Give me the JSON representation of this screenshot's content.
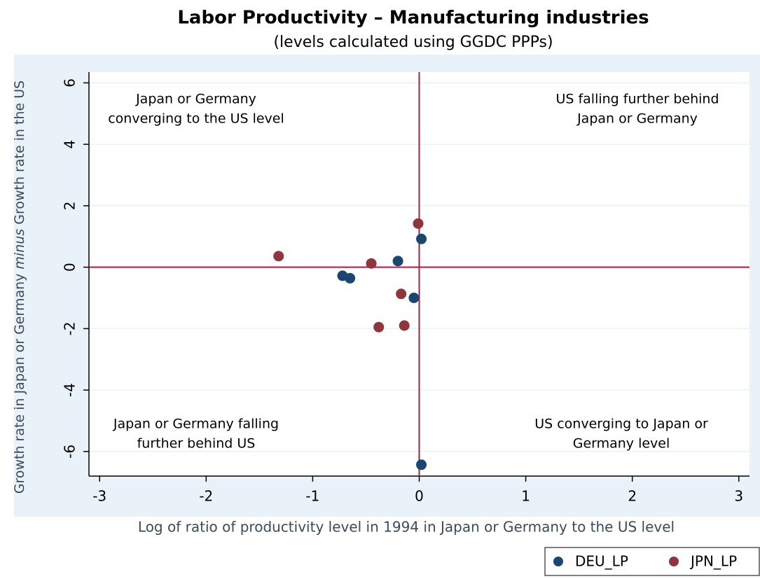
{
  "chart_data": {
    "type": "scatter",
    "title": "Labor Productivity – Manufacturing industries",
    "subtitle": "(levels calculated using GGDC PPPs)",
    "xlabel": "Log of ratio of productivity level in 1994 in Japan or Germany to the US level",
    "ylabel": [
      "Growth rate in Japan or Germany ",
      "minus",
      " Growth rate in the US"
    ],
    "xlim": [
      -3.1,
      3.1
    ],
    "ylim": [
      -6.8,
      6.35
    ],
    "xticks": [
      -3,
      -2,
      -1,
      0,
      1,
      2,
      3
    ],
    "yticks": [
      -6,
      -4,
      -2,
      0,
      2,
      4,
      6
    ],
    "grid": true,
    "reference_lines": {
      "x": 0,
      "y": 0,
      "color": "#b5173e"
    },
    "annotations": [
      [
        "Japan or Germany",
        "converging to the US level"
      ],
      [
        "US falling further behind",
        "Japan or Germany"
      ],
      [
        "Japan or Germany falling",
        "further behind US"
      ],
      [
        "US converging to Japan or",
        "Germany level"
      ]
    ],
    "legend": "bottom-right",
    "series": [
      {
        "name": "DEU_LP",
        "color": "#1a476f",
        "x": [
          -0.72,
          -0.65,
          -0.2,
          0.02,
          -0.05,
          0.02
        ],
        "values": [
          -0.28,
          -0.36,
          0.2,
          0.92,
          -1.0,
          -6.43
        ]
      },
      {
        "name": "JPN_LP",
        "color": "#90353b",
        "x": [
          -1.32,
          -0.45,
          -0.01,
          -0.17,
          -0.38,
          -0.14
        ],
        "values": [
          0.36,
          0.12,
          1.42,
          -0.87,
          -1.95,
          -1.9
        ]
      }
    ]
  }
}
